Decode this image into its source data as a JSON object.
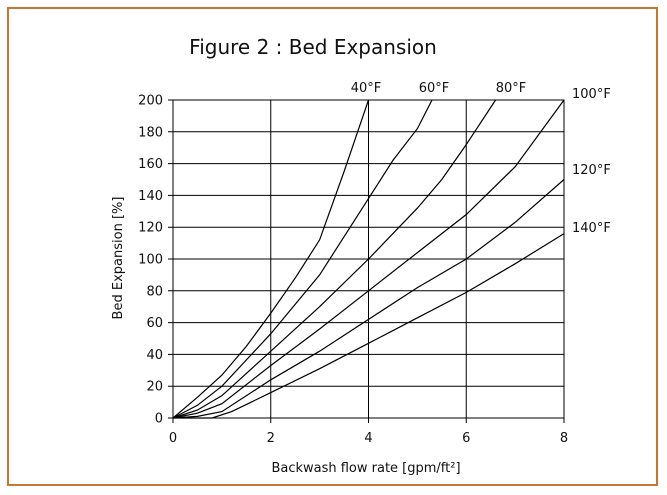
{
  "colors": {
    "frame": "#c9772e",
    "axis": "#000000",
    "series": "#000000"
  },
  "chart_data": {
    "type": "line",
    "title": "Figure 2 : Bed Expansion",
    "xlabel": "Backwash flow rate [gpm/ft²]",
    "ylabel": "Bed Expansion [%]",
    "xlim": [
      0,
      8
    ],
    "ylim": [
      0,
      200
    ],
    "xticks": [
      0,
      2,
      4,
      6,
      8
    ],
    "yticks": [
      0,
      20,
      40,
      60,
      80,
      100,
      120,
      140,
      160,
      180,
      200
    ],
    "grid": true,
    "series": [
      {
        "name": "40°F",
        "x": [
          0,
          0.5,
          1,
          1.5,
          2,
          2.5,
          3,
          3.5,
          4
        ],
        "y": [
          0,
          13,
          27,
          45,
          66,
          88,
          112,
          155,
          200
        ]
      },
      {
        "name": "60°F",
        "x": [
          0,
          0.5,
          1,
          2,
          3,
          4,
          4.5,
          5,
          5.3
        ],
        "y": [
          0,
          8,
          20,
          53,
          90,
          138,
          162,
          182,
          200
        ]
      },
      {
        "name": "80°F",
        "x": [
          0,
          0.5,
          1,
          2,
          3,
          4,
          5,
          5.5,
          6,
          6.6
        ],
        "y": [
          0,
          5,
          14,
          42,
          70,
          100,
          132,
          150,
          172,
          200
        ]
      },
      {
        "name": "100°F",
        "x": [
          0,
          0.5,
          1,
          2,
          3,
          4,
          5,
          6,
          7,
          8
        ],
        "y": [
          0,
          3,
          9,
          33,
          56,
          80,
          104,
          128,
          158,
          200
        ]
      },
      {
        "name": "120°F",
        "x": [
          0,
          0.5,
          1,
          2,
          3,
          4,
          5,
          6,
          7,
          8
        ],
        "y": [
          0,
          1,
          4,
          24,
          42,
          62,
          82,
          100,
          123,
          150
        ]
      },
      {
        "name": "140°F",
        "x": [
          0,
          0.8,
          1.2,
          2,
          3,
          4,
          5,
          6,
          7,
          8
        ],
        "y": [
          0,
          0,
          4,
          16,
          31,
          47,
          63,
          79,
          97,
          116
        ]
      }
    ]
  }
}
